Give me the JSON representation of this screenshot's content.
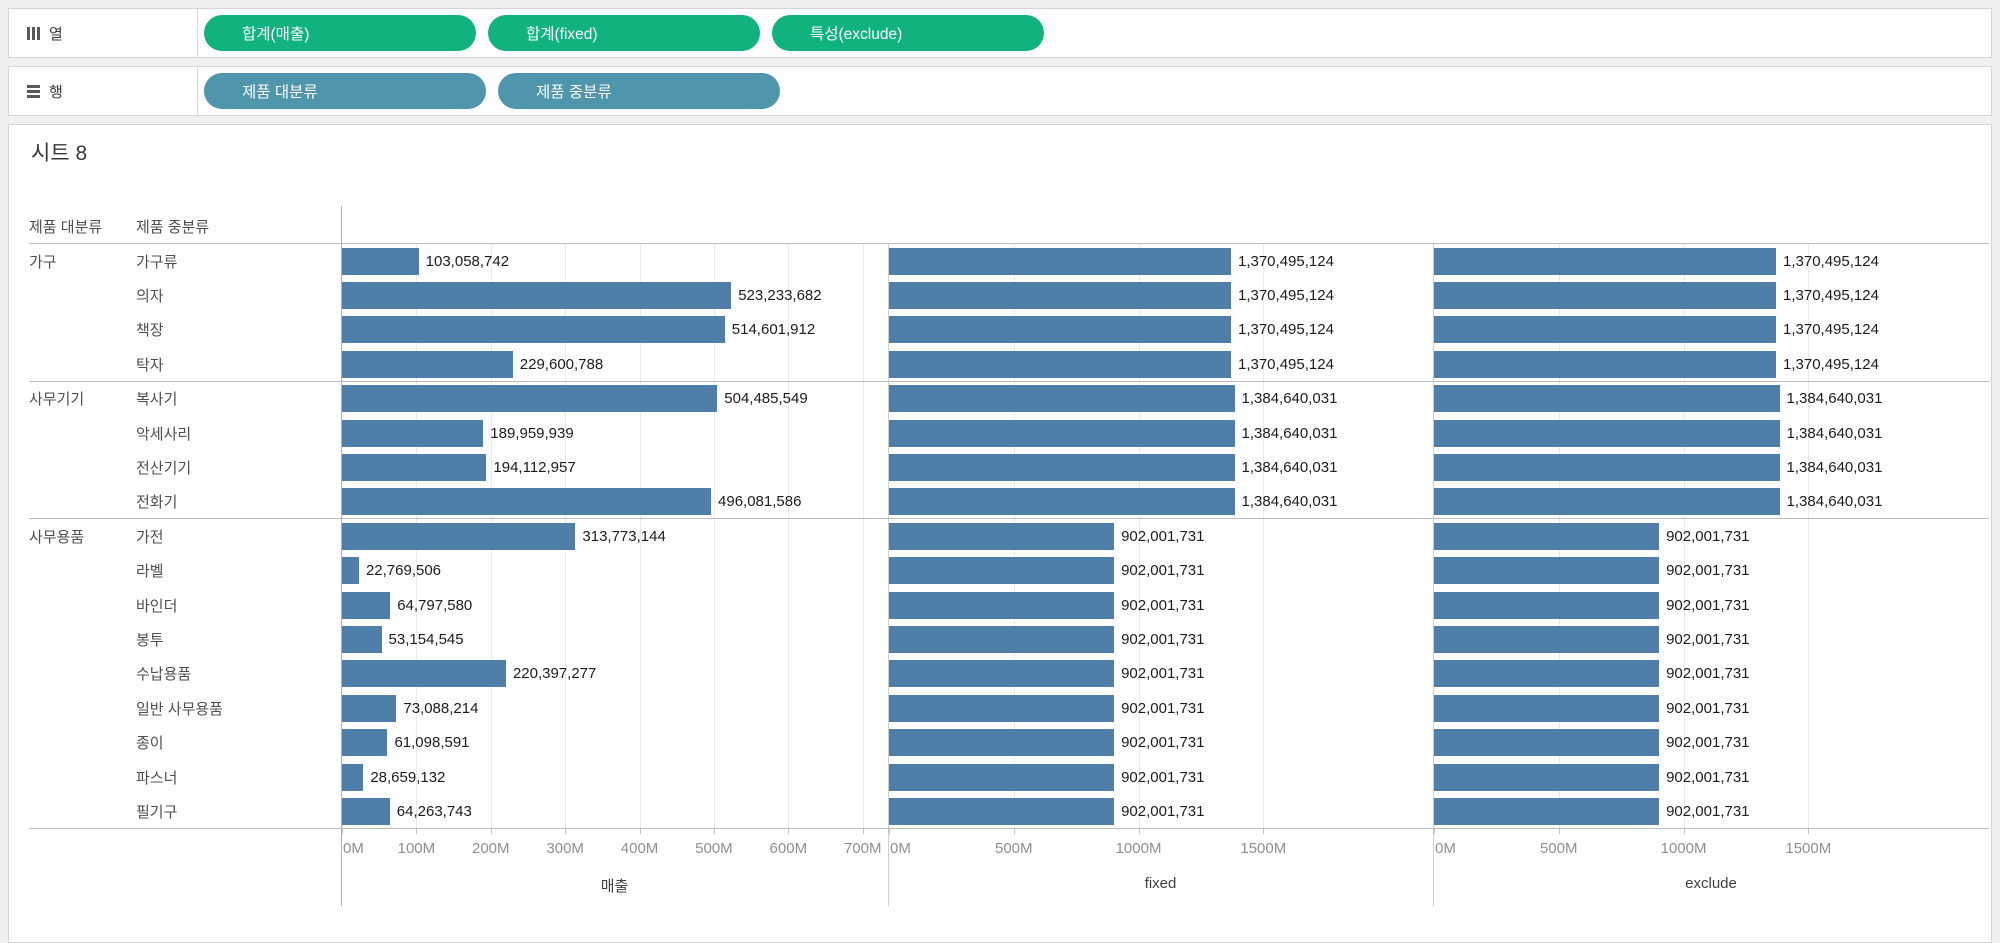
{
  "shelves": {
    "columns": {
      "label": "열",
      "icon": "columns-icon",
      "pills": [
        {
          "label": "합계(매출)"
        },
        {
          "label": "합계(fixed)"
        },
        {
          "label": "특성(exclude)"
        }
      ],
      "pill_color": "#10b37d"
    },
    "rows": {
      "label": "행",
      "icon": "rows-icon",
      "pills": [
        {
          "label": "제품 대분류"
        },
        {
          "label": "제품 중분류"
        }
      ],
      "pill_color": "#4f96ad"
    }
  },
  "sheet": {
    "title": "시트 8"
  },
  "chart_data": {
    "type": "bar",
    "orientation": "horizontal",
    "bar_color": "#4f7fa9",
    "row_headers": [
      "제품 대분류",
      "제품 중분류"
    ],
    "series_names": [
      "매출",
      "fixed",
      "exclude"
    ],
    "groups": [
      {
        "major": "가구",
        "rows": [
          {
            "label": "가구류",
            "values": [
              103058742,
              1370495124,
              1370495124
            ]
          },
          {
            "label": "의자",
            "values": [
              523233682,
              1370495124,
              1370495124
            ]
          },
          {
            "label": "책장",
            "values": [
              514601912,
              1370495124,
              1370495124
            ]
          },
          {
            "label": "탁자",
            "values": [
              229600788,
              1370495124,
              1370495124
            ]
          }
        ]
      },
      {
        "major": "사무기기",
        "rows": [
          {
            "label": "복사기",
            "values": [
              504485549,
              1384640031,
              1384640031
            ]
          },
          {
            "label": "악세사리",
            "values": [
              189959939,
              1384640031,
              1384640031
            ]
          },
          {
            "label": "전산기기",
            "values": [
              194112957,
              1384640031,
              1384640031
            ]
          },
          {
            "label": "전화기",
            "values": [
              496081586,
              1384640031,
              1384640031
            ]
          }
        ]
      },
      {
        "major": "사무용품",
        "rows": [
          {
            "label": "가전",
            "values": [
              313773144,
              902001731,
              902001731
            ]
          },
          {
            "label": "라벨",
            "values": [
              22769506,
              902001731,
              902001731
            ]
          },
          {
            "label": "바인더",
            "values": [
              64797580,
              902001731,
              902001731
            ]
          },
          {
            "label": "봉투",
            "values": [
              53154545,
              902001731,
              902001731
            ]
          },
          {
            "label": "수납용품",
            "values": [
              220397277,
              902001731,
              902001731
            ]
          },
          {
            "label": "일반 사무용품",
            "values": [
              73088214,
              902001731,
              902001731
            ]
          },
          {
            "label": "종이",
            "values": [
              61098591,
              902001731,
              902001731
            ]
          },
          {
            "label": "파스너",
            "values": [
              28659132,
              902001731,
              902001731
            ]
          },
          {
            "label": "필기구",
            "values": [
              64263743,
              902001731,
              902001731
            ]
          }
        ]
      }
    ],
    "panels": [
      {
        "title": "매출",
        "xlim": [
          0,
          734000000
        ],
        "ticks": [
          {
            "label": "0M",
            "value": 0
          },
          {
            "label": "100M",
            "value": 100000000
          },
          {
            "label": "200M",
            "value": 200000000
          },
          {
            "label": "300M",
            "value": 300000000
          },
          {
            "label": "400M",
            "value": 400000000
          },
          {
            "label": "500M",
            "value": 500000000
          },
          {
            "label": "600M",
            "value": 600000000
          },
          {
            "label": "700M",
            "value": 700000000
          }
        ]
      },
      {
        "title": "fixed",
        "xlim": [
          0,
          2180000000
        ],
        "ticks": [
          {
            "label": "0M",
            "value": 0
          },
          {
            "label": "500M",
            "value": 500000000
          },
          {
            "label": "1000M",
            "value": 1000000000
          },
          {
            "label": "1500M",
            "value": 1500000000
          }
        ]
      },
      {
        "title": "exclude",
        "xlim": [
          0,
          2224000000
        ],
        "ticks": [
          {
            "label": "0M",
            "value": 0
          },
          {
            "label": "500M",
            "value": 500000000
          },
          {
            "label": "1000M",
            "value": 1000000000
          },
          {
            "label": "1500M",
            "value": 1500000000
          }
        ]
      }
    ]
  }
}
